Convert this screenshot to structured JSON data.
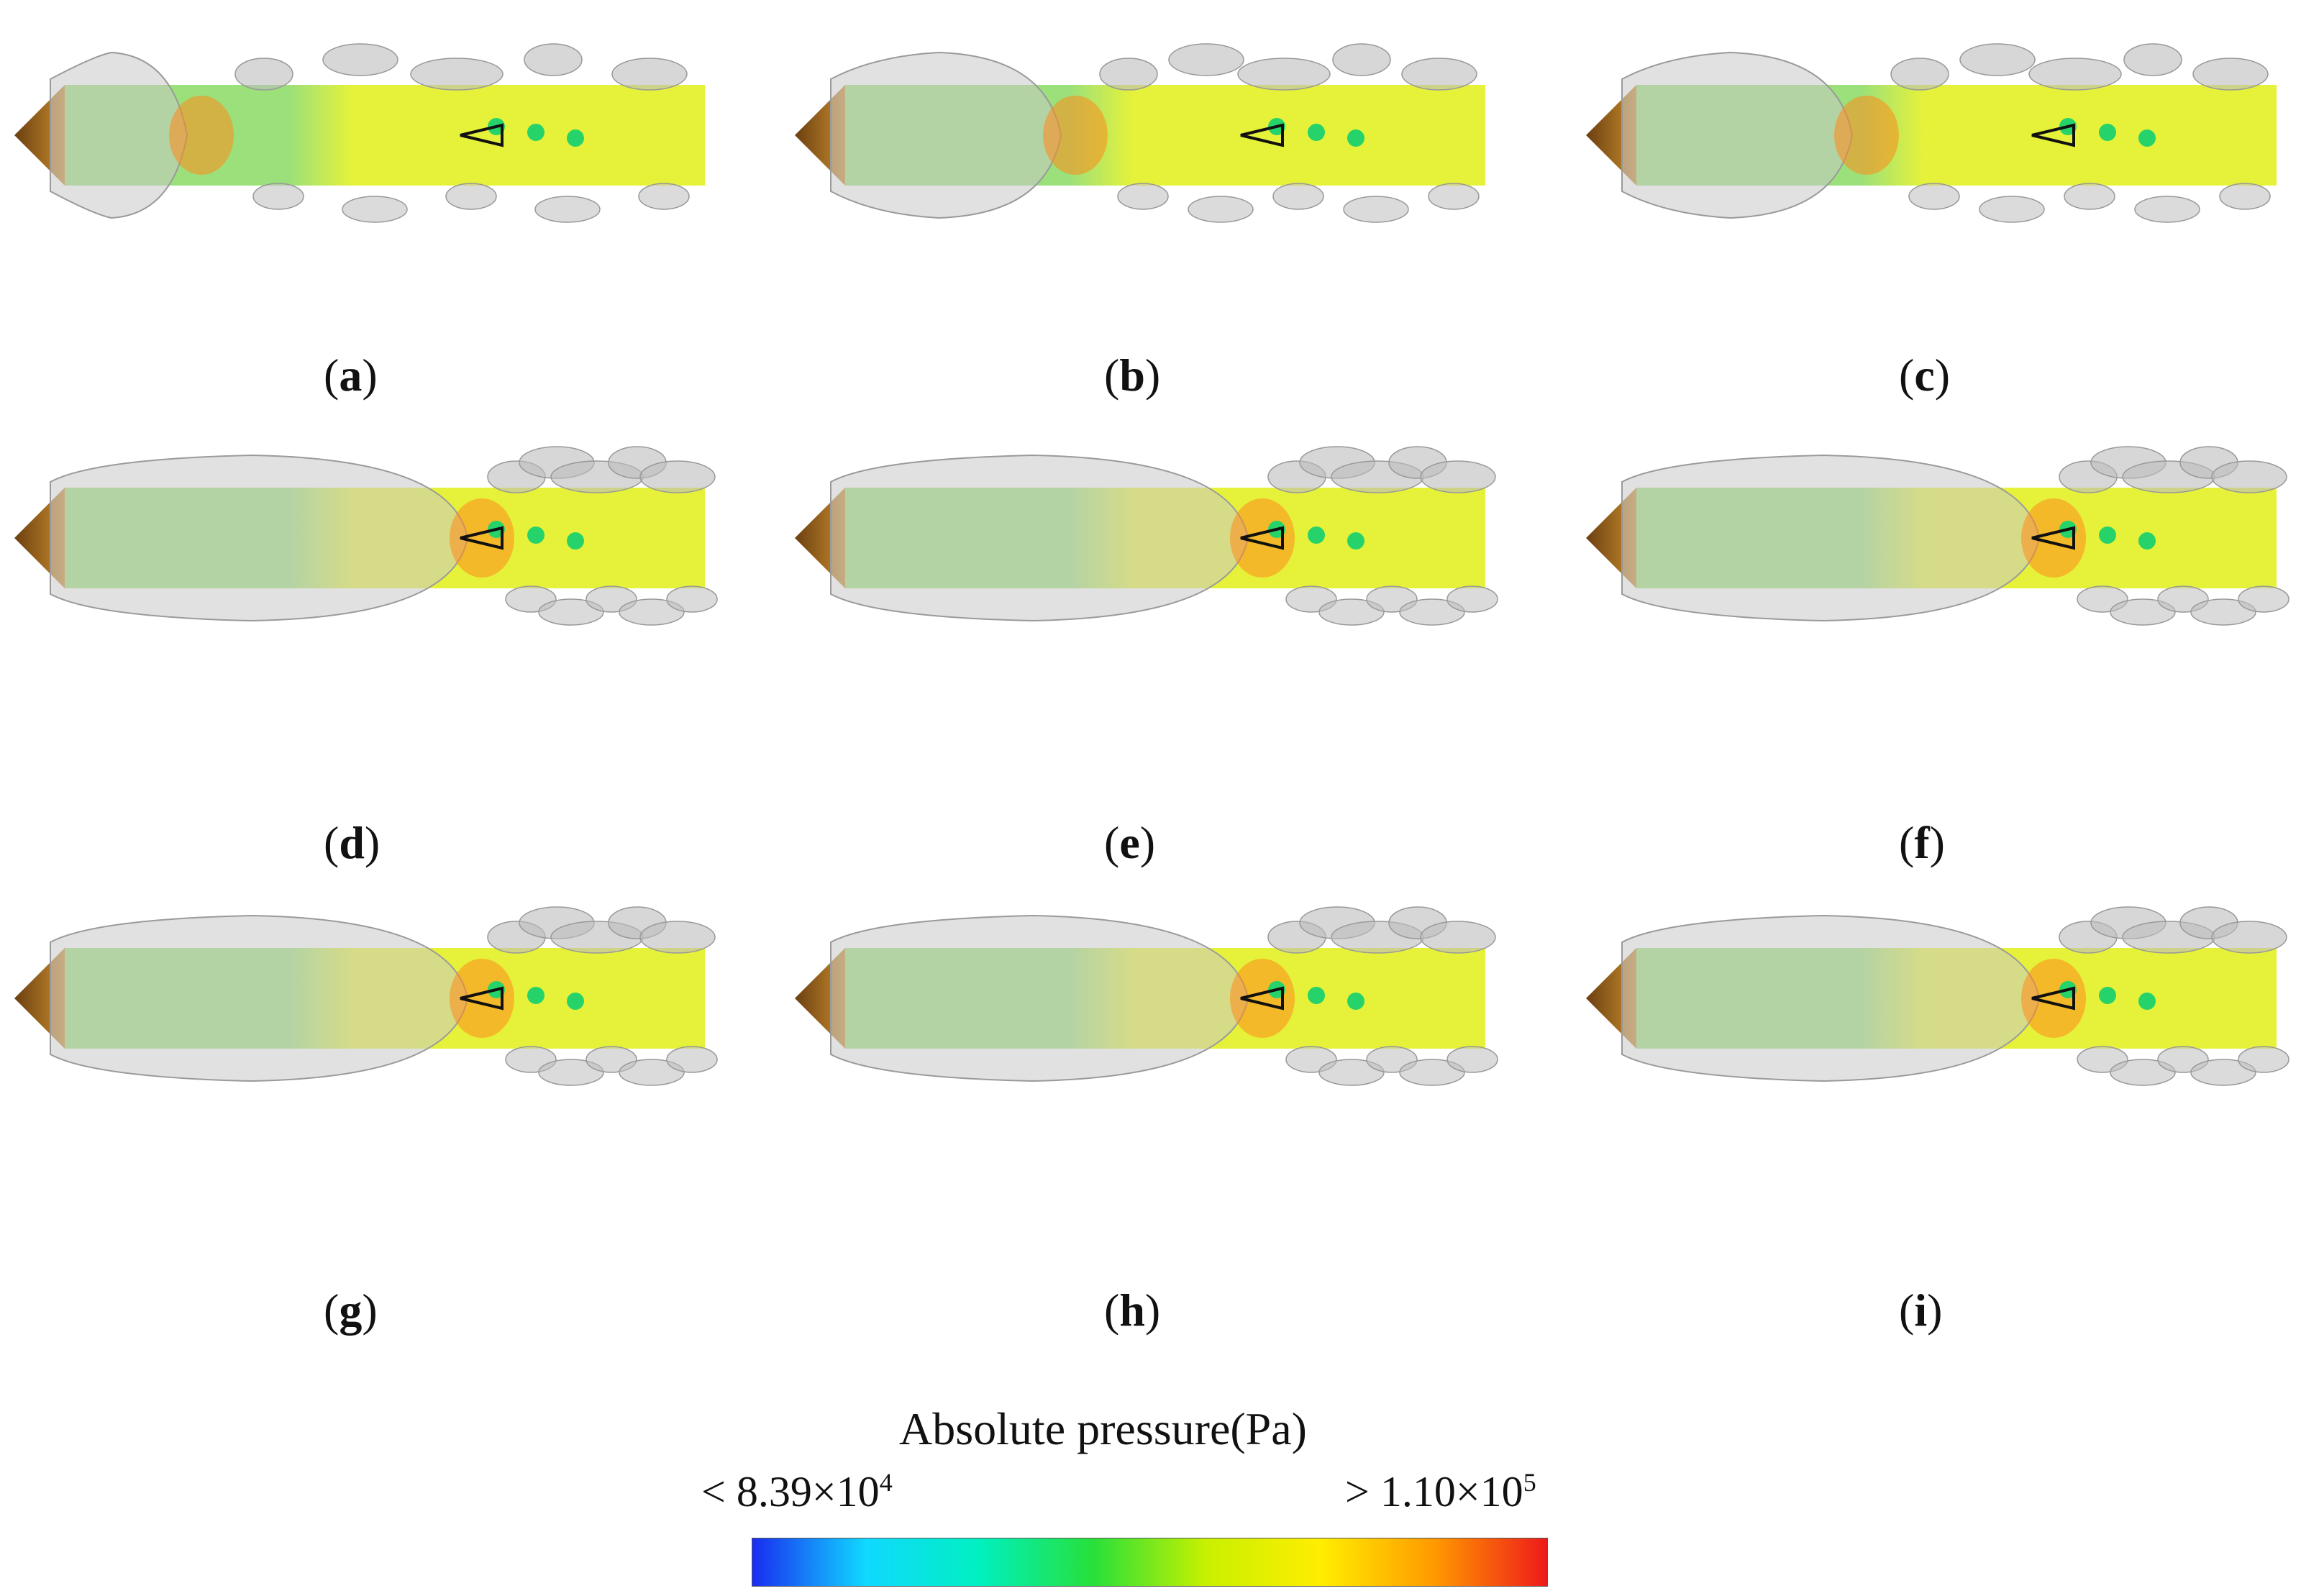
{
  "panels": [
    {
      "id": "a",
      "label": "a",
      "cavity": "short"
    },
    {
      "id": "b",
      "label": "b",
      "cavity": "short-shed"
    },
    {
      "id": "c",
      "label": "c",
      "cavity": "short-shed"
    },
    {
      "id": "d",
      "label": "d",
      "cavity": "long"
    },
    {
      "id": "e",
      "label": "e",
      "cavity": "long"
    },
    {
      "id": "f",
      "label": "f",
      "cavity": "long"
    },
    {
      "id": "g",
      "label": "g",
      "cavity": "long"
    },
    {
      "id": "h",
      "label": "h",
      "cavity": "long"
    },
    {
      "id": "i",
      "label": "i",
      "cavity": "long"
    }
  ],
  "legend": {
    "title": "Absolute pressure(Pa)",
    "min_label_prefix": "< 8.39×10",
    "min_label_exp": "4",
    "max_label_prefix": "> 1.10×10",
    "max_label_exp": "5",
    "colormap": [
      "#1a2cf0",
      "#10d9ff",
      "#00f0c0",
      "#27e03a",
      "#c8f000",
      "#ffee00",
      "#ff9a00",
      "#ee1a1a"
    ]
  },
  "colors": {
    "body_yellow": "#e6f23a",
    "body_green": "#9be07a",
    "nose": "#a0661c",
    "cavity_gray": "#c9c9c9",
    "high_pressure": "#ff8a1a"
  }
}
